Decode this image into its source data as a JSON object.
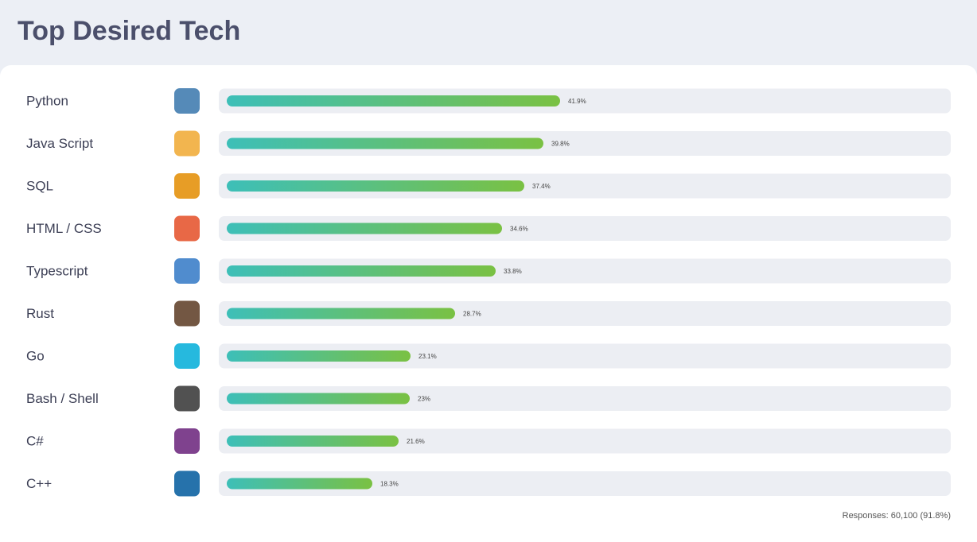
{
  "chart_data": {
    "type": "bar",
    "orientation": "horizontal",
    "title": "Top Desired Tech",
    "categories": [
      "Python",
      "Java Script",
      "SQL",
      "HTML / CSS",
      "Typescript",
      "Rust",
      "Go",
      "Bash / Shell",
      "C#",
      "C++"
    ],
    "values": [
      41.9,
      39.8,
      37.4,
      34.6,
      33.8,
      28.7,
      23.1,
      23,
      21.6,
      18.3
    ],
    "value_labels": [
      "41.9%",
      "39.8%",
      "37.4%",
      "34.6%",
      "33.8%",
      "28.7%",
      "23.1%",
      "23%",
      "21.6%",
      "18.3%"
    ],
    "color": [
      "#3dbfb8",
      "#7ac143"
    ],
    "footnote": "Responses: 60,100 (91.8%)"
  }
}
